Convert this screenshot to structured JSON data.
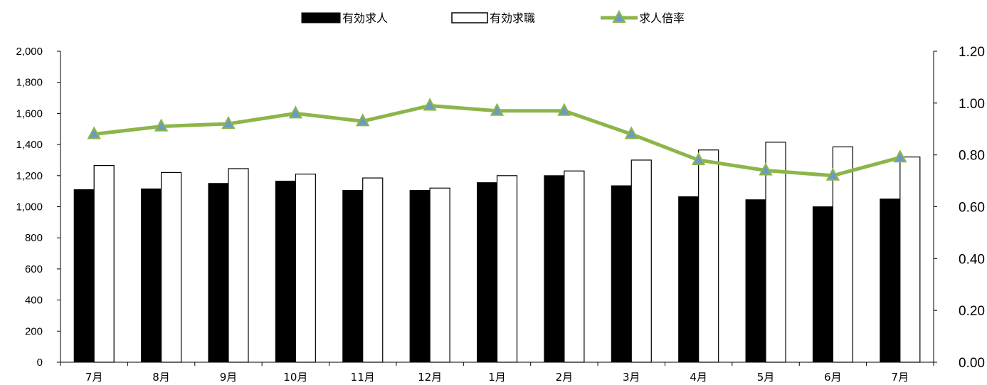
{
  "chart_data": {
    "type": "bar",
    "categories": [
      "7月",
      "8月",
      "9月",
      "10月",
      "11月",
      "12月",
      "1月",
      "2月",
      "3月",
      "4月",
      "5月",
      "6月",
      "7月"
    ],
    "series": [
      {
        "name": "有効求人",
        "type": "bar",
        "axis": "left",
        "color": "#000000",
        "values": [
          1110,
          1115,
          1150,
          1165,
          1105,
          1105,
          1155,
          1200,
          1135,
          1065,
          1045,
          1000,
          1050
        ]
      },
      {
        "name": "有効求職",
        "type": "bar",
        "axis": "left",
        "color": "#ffffff",
        "values": [
          1265,
          1220,
          1245,
          1210,
          1185,
          1120,
          1200,
          1230,
          1300,
          1365,
          1415,
          1385,
          1320
        ]
      },
      {
        "name": "求人倍率",
        "type": "line",
        "axis": "right",
        "color": "#8db54a",
        "marker_color": "#6b9bc3",
        "values": [
          0.88,
          0.91,
          0.92,
          0.96,
          0.93,
          0.99,
          0.97,
          0.97,
          0.88,
          0.78,
          0.74,
          0.72,
          0.79
        ]
      }
    ],
    "y_left": {
      "ylim": [
        0,
        2000
      ],
      "ticks": [
        "0",
        "200",
        "400",
        "600",
        "800",
        "1,000",
        "1,200",
        "1,400",
        "1,600",
        "1,800",
        "2,000"
      ]
    },
    "y_right": {
      "ylim": [
        0,
        1.2
      ],
      "ticks": [
        "0.00",
        "0.20",
        "0.40",
        "0.60",
        "0.80",
        "1.00",
        "1.20"
      ]
    },
    "legend": {
      "position": "top-center",
      "items": [
        "有効求人",
        "有効求職",
        "求人倍率"
      ]
    },
    "grid": false
  }
}
